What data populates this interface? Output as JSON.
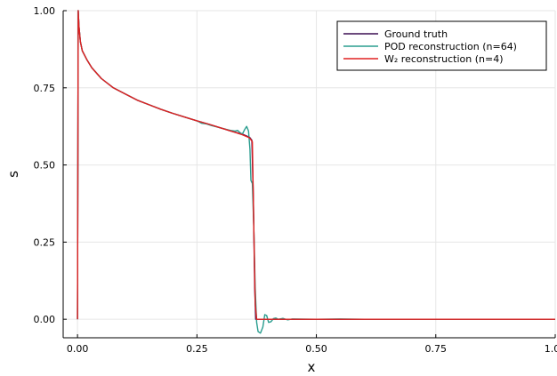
{
  "chart_data": {
    "type": "line",
    "xlabel": "x",
    "ylabel": "s",
    "xlim": [
      -0.03,
      1.0
    ],
    "ylim": [
      -0.06,
      1.0
    ],
    "xticks": [
      0.0,
      0.25,
      0.5,
      0.75,
      1.0
    ],
    "xtick_labels": [
      "0.00",
      "0.25",
      "0.50",
      "0.75",
      "1.00"
    ],
    "yticks": [
      0.0,
      0.25,
      0.5,
      0.75,
      1.0
    ],
    "ytick_labels": [
      "0.00",
      "0.25",
      "0.50",
      "0.75",
      "1.00"
    ],
    "grid": true,
    "legend_position": "top-right",
    "series": [
      {
        "name": "Ground truth",
        "color": "#3b0f52",
        "points": [
          [
            0.0,
            0.0
          ],
          [
            0.0015,
            1.0
          ],
          [
            0.003,
            0.95
          ],
          [
            0.006,
            0.9
          ],
          [
            0.01,
            0.87
          ],
          [
            0.02,
            0.84
          ],
          [
            0.03,
            0.815
          ],
          [
            0.05,
            0.78
          ],
          [
            0.075,
            0.75
          ],
          [
            0.1,
            0.73
          ],
          [
            0.125,
            0.71
          ],
          [
            0.15,
            0.695
          ],
          [
            0.175,
            0.68
          ],
          [
            0.2,
            0.667
          ],
          [
            0.225,
            0.655
          ],
          [
            0.25,
            0.643
          ],
          [
            0.275,
            0.632
          ],
          [
            0.3,
            0.62
          ],
          [
            0.325,
            0.608
          ],
          [
            0.345,
            0.6
          ],
          [
            0.36,
            0.59
          ],
          [
            0.365,
            0.58
          ],
          [
            0.368,
            0.4
          ],
          [
            0.371,
            0.1
          ],
          [
            0.373,
            0.0
          ],
          [
            0.4,
            0.0
          ],
          [
            1.0,
            0.0
          ]
        ]
      },
      {
        "name": "POD reconstruction (n=64)",
        "color": "#2a9d8f",
        "points": [
          [
            0.0,
            0.0
          ],
          [
            0.0015,
            1.0
          ],
          [
            0.003,
            0.95
          ],
          [
            0.006,
            0.9
          ],
          [
            0.01,
            0.87
          ],
          [
            0.02,
            0.84
          ],
          [
            0.03,
            0.815
          ],
          [
            0.05,
            0.78
          ],
          [
            0.075,
            0.75
          ],
          [
            0.1,
            0.73
          ],
          [
            0.125,
            0.71
          ],
          [
            0.15,
            0.695
          ],
          [
            0.175,
            0.68
          ],
          [
            0.2,
            0.667
          ],
          [
            0.225,
            0.655
          ],
          [
            0.25,
            0.643
          ],
          [
            0.26,
            0.635
          ],
          [
            0.27,
            0.633
          ],
          [
            0.28,
            0.628
          ],
          [
            0.29,
            0.624
          ],
          [
            0.3,
            0.62
          ],
          [
            0.31,
            0.616
          ],
          [
            0.32,
            0.612
          ],
          [
            0.33,
            0.61
          ],
          [
            0.335,
            0.612
          ],
          [
            0.34,
            0.605
          ],
          [
            0.345,
            0.6
          ],
          [
            0.35,
            0.615
          ],
          [
            0.354,
            0.625
          ],
          [
            0.358,
            0.61
          ],
          [
            0.361,
            0.55
          ],
          [
            0.363,
            0.45
          ],
          [
            0.366,
            0.44
          ],
          [
            0.369,
            0.3
          ],
          [
            0.372,
            0.1
          ],
          [
            0.375,
            -0.01
          ],
          [
            0.378,
            -0.04
          ],
          [
            0.383,
            -0.045
          ],
          [
            0.388,
            -0.025
          ],
          [
            0.392,
            0.015
          ],
          [
            0.396,
            0.012
          ],
          [
            0.4,
            -0.01
          ],
          [
            0.405,
            -0.008
          ],
          [
            0.41,
            0.002
          ],
          [
            0.415,
            0.004
          ],
          [
            0.42,
            0.0
          ],
          [
            0.43,
            0.003
          ],
          [
            0.44,
            -0.002
          ],
          [
            0.45,
            0.001
          ],
          [
            0.5,
            0.0
          ],
          [
            0.55,
            0.001
          ],
          [
            0.6,
            0.0
          ],
          [
            1.0,
            0.0
          ]
        ]
      },
      {
        "name": "W₂ reconstruction (n=4)",
        "color": "#e02020",
        "points": [
          [
            0.0,
            0.0
          ],
          [
            0.0015,
            1.0
          ],
          [
            0.003,
            0.95
          ],
          [
            0.006,
            0.9
          ],
          [
            0.01,
            0.87
          ],
          [
            0.02,
            0.84
          ],
          [
            0.03,
            0.815
          ],
          [
            0.05,
            0.78
          ],
          [
            0.075,
            0.75
          ],
          [
            0.1,
            0.73
          ],
          [
            0.125,
            0.71
          ],
          [
            0.15,
            0.695
          ],
          [
            0.175,
            0.68
          ],
          [
            0.2,
            0.667
          ],
          [
            0.225,
            0.655
          ],
          [
            0.25,
            0.643
          ],
          [
            0.275,
            0.632
          ],
          [
            0.3,
            0.62
          ],
          [
            0.325,
            0.608
          ],
          [
            0.345,
            0.598
          ],
          [
            0.36,
            0.588
          ],
          [
            0.366,
            0.575
          ],
          [
            0.369,
            0.3
          ],
          [
            0.372,
            0.05
          ],
          [
            0.375,
            0.0
          ],
          [
            0.4,
            0.0
          ],
          [
            1.0,
            0.0
          ]
        ]
      }
    ]
  }
}
